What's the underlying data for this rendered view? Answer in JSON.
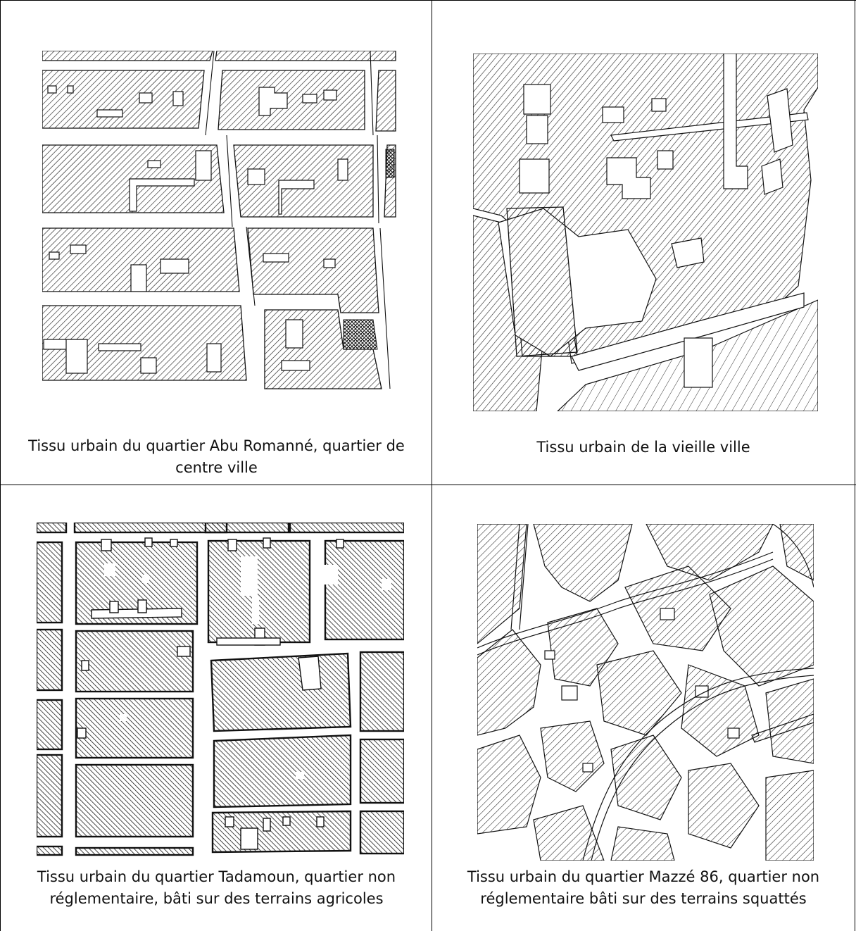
{
  "cells": [
    {
      "caption": "Tissu urbain du quartier Abu Romanné, quartier de centre ville"
    },
    {
      "caption": "Tissu urbain de la vieille ville"
    },
    {
      "caption": "Tissu urbain du quartier Tadamoun, quartier  non réglementaire, bâti sur des terrains agricoles"
    },
    {
      "caption": "Tissu urbain du quartier Mazzé 86, quartier  non réglementaire bâti sur des terrains squattés"
    }
  ],
  "colors": {
    "line": "#000000",
    "hatch": "#222222",
    "background": "#ffffff"
  }
}
